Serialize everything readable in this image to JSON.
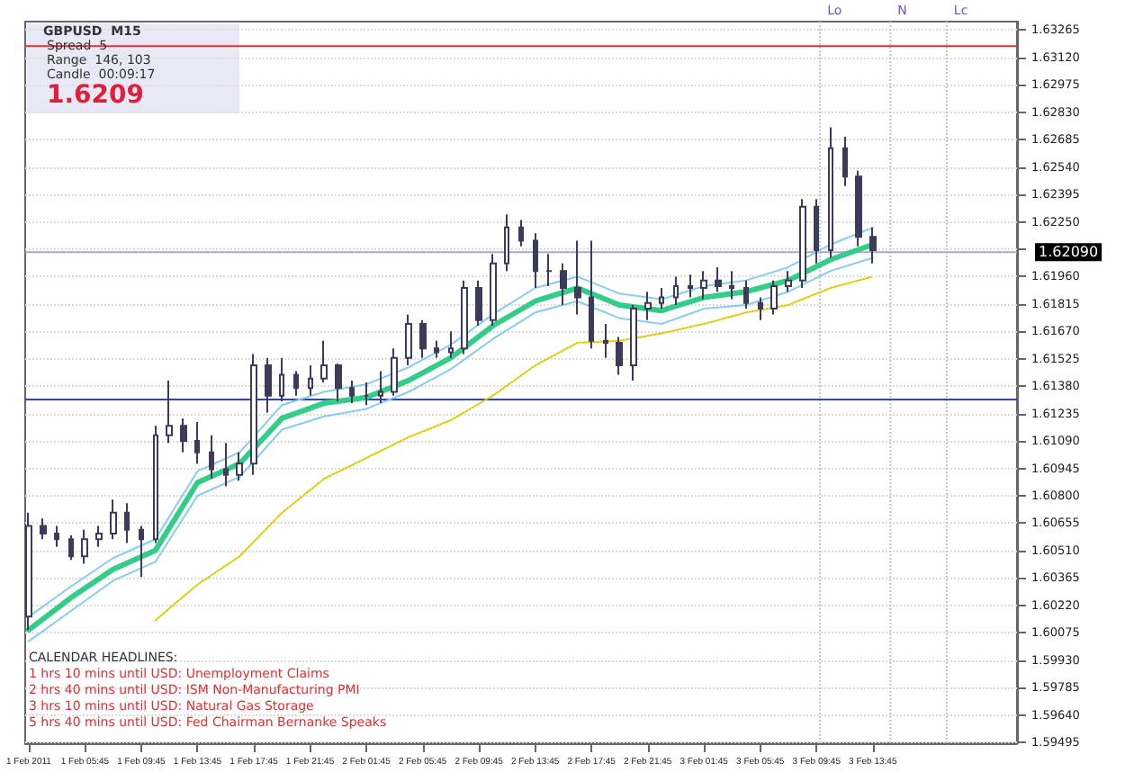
{
  "chart_data": {
    "type": "candlestick",
    "color": "#3c3c5a",
    "x": [
      "2011-02-01T01:45",
      "2011-02-01T02:45",
      "2011-02-01T03:45",
      "2011-02-01T04:45",
      "2011-02-01T05:45",
      "2011-02-01T06:45",
      "2011-02-01T07:45",
      "2011-02-01T08:45",
      "2011-02-01T09:45",
      "2011-02-01T10:45",
      "2011-02-01T11:45",
      "2011-02-01T12:45",
      "2011-02-01T13:45",
      "2011-02-01T14:45",
      "2011-02-01T15:45",
      "2011-02-01T16:45",
      "2011-02-01T17:45",
      "2011-02-01T18:45",
      "2011-02-01T19:45",
      "2011-02-01T20:45",
      "2011-02-01T21:45",
      "2011-02-01T22:45",
      "2011-02-01T23:45",
      "2011-02-02T00:45",
      "2011-02-02T01:45",
      "2011-02-02T02:45",
      "2011-02-02T03:45",
      "2011-02-02T04:45",
      "2011-02-02T05:45",
      "2011-02-02T06:45",
      "2011-02-02T07:45",
      "2011-02-02T08:45",
      "2011-02-02T09:45",
      "2011-02-02T10:45",
      "2011-02-02T11:45",
      "2011-02-02T12:45",
      "2011-02-02T13:45",
      "2011-02-02T14:45",
      "2011-02-02T15:45",
      "2011-02-02T16:45",
      "2011-02-02T17:45",
      "2011-02-02T18:45",
      "2011-02-02T19:45",
      "2011-02-02T20:45",
      "2011-02-02T21:45",
      "2011-02-02T22:45",
      "2011-02-02T23:45",
      "2011-02-03T00:45",
      "2011-02-03T01:45",
      "2011-02-03T02:45",
      "2011-02-03T03:45",
      "2011-02-03T04:45",
      "2011-02-03T05:45",
      "2011-02-03T06:45",
      "2011-02-03T07:45",
      "2011-02-03T08:45",
      "2011-02-03T09:45",
      "2011-02-03T10:45",
      "2011-02-03T11:45",
      "2011-02-03T12:45",
      "2011-02-03T13:45"
    ],
    "ohlc": [
      [
        1.6016,
        1.6071,
        1.6009,
        1.6064
      ],
      [
        1.6064,
        1.6068,
        1.6057,
        1.606
      ],
      [
        1.606,
        1.6064,
        1.6053,
        1.6057
      ],
      [
        1.6057,
        1.6059,
        1.6046,
        1.6048
      ],
      [
        1.6048,
        1.6062,
        1.6044,
        1.6057
      ],
      [
        1.6057,
        1.6064,
        1.6053,
        1.606
      ],
      [
        1.606,
        1.6078,
        1.6057,
        1.6071
      ],
      [
        1.6071,
        1.6076,
        1.6055,
        1.6062
      ],
      [
        1.6062,
        1.6064,
        1.6037,
        1.6057
      ],
      [
        1.6057,
        1.6117,
        1.6055,
        1.6112
      ],
      [
        1.6112,
        1.6141,
        1.6108,
        1.6117
      ],
      [
        1.6117,
        1.6121,
        1.6103,
        1.6109
      ],
      [
        1.6109,
        1.6119,
        1.6097,
        1.6103
      ],
      [
        1.6103,
        1.6112,
        1.6089,
        1.6094
      ],
      [
        1.6094,
        1.6108,
        1.6085,
        1.6091
      ],
      [
        1.6091,
        1.6103,
        1.6088,
        1.6097
      ],
      [
        1.6097,
        1.6155,
        1.6091,
        1.6149
      ],
      [
        1.6149,
        1.6153,
        1.6124,
        1.6133
      ],
      [
        1.6133,
        1.6153,
        1.613,
        1.6144
      ],
      [
        1.6144,
        1.6146,
        1.6133,
        1.6137
      ],
      [
        1.6137,
        1.6149,
        1.6133,
        1.6142
      ],
      [
        1.6142,
        1.6162,
        1.614,
        1.6149
      ],
      [
        1.6149,
        1.615,
        1.613,
        1.6137
      ],
      [
        1.6137,
        1.6141,
        1.6129,
        1.6133
      ],
      [
        1.6133,
        1.614,
        1.6128,
        1.6133
      ],
      [
        1.6133,
        1.6146,
        1.6129,
        1.6135
      ],
      [
        1.6135,
        1.6158,
        1.6133,
        1.6153
      ],
      [
        1.6153,
        1.6176,
        1.6149,
        1.6171
      ],
      [
        1.6171,
        1.6173,
        1.6153,
        1.6158
      ],
      [
        1.6158,
        1.6162,
        1.6153,
        1.6156
      ],
      [
        1.6156,
        1.6167,
        1.6153,
        1.6158
      ],
      [
        1.6158,
        1.6194,
        1.6155,
        1.619
      ],
      [
        1.619,
        1.6194,
        1.617,
        1.6173
      ],
      [
        1.6173,
        1.6208,
        1.617,
        1.6203
      ],
      [
        1.6203,
        1.6229,
        1.6199,
        1.6222
      ],
      [
        1.6222,
        1.6226,
        1.6212,
        1.6215
      ],
      [
        1.6215,
        1.6219,
        1.619,
        1.6199
      ],
      [
        1.6199,
        1.6208,
        1.6191,
        1.6199
      ],
      [
        1.6199,
        1.6203,
        1.6181,
        1.619
      ],
      [
        1.619,
        1.6215,
        1.6176,
        1.6185
      ],
      [
        1.6185,
        1.6215,
        1.6158,
        1.6162
      ],
      [
        1.6162,
        1.6171,
        1.6153,
        1.6161
      ],
      [
        1.6161,
        1.6164,
        1.6144,
        1.6149
      ],
      [
        1.6149,
        1.6181,
        1.6141,
        1.6179
      ],
      [
        1.6179,
        1.6188,
        1.6173,
        1.6182
      ],
      [
        1.6182,
        1.619,
        1.6179,
        1.6185
      ],
      [
        1.6185,
        1.6196,
        1.6181,
        1.6191
      ],
      [
        1.6191,
        1.6197,
        1.6185,
        1.619
      ],
      [
        1.619,
        1.6199,
        1.6184,
        1.6194
      ],
      [
        1.6194,
        1.6201,
        1.6188,
        1.6191
      ],
      [
        1.6191,
        1.6199,
        1.6184,
        1.619
      ],
      [
        1.619,
        1.6194,
        1.6179,
        1.6182
      ],
      [
        1.6182,
        1.6185,
        1.6173,
        1.6179
      ],
      [
        1.6179,
        1.6194,
        1.6176,
        1.6191
      ],
      [
        1.6191,
        1.6199,
        1.6188,
        1.6194
      ],
      [
        1.6194,
        1.6237,
        1.619,
        1.6233
      ],
      [
        1.6233,
        1.6237,
        1.6203,
        1.621
      ],
      [
        1.621,
        1.6275,
        1.6206,
        1.6264
      ],
      [
        1.6264,
        1.627,
        1.6244,
        1.6249
      ],
      [
        1.6249,
        1.6252,
        1.6212,
        1.6217
      ],
      [
        1.6217,
        1.6222,
        1.6203,
        1.621
      ]
    ],
    "series": [
      {
        "type": "line",
        "color": "#33cc88",
        "line_style": "solid",
        "x": [
          "2011-02-01T01:45",
          "2011-02-01T04:45",
          "2011-02-01T07:45",
          "2011-02-01T10:45",
          "2011-02-01T13:45",
          "2011-02-01T16:45",
          "2011-02-01T19:45",
          "2011-02-01T22:45",
          "2011-02-02T01:45",
          "2011-02-02T04:45",
          "2011-02-02T07:45",
          "2011-02-02T10:45",
          "2011-02-02T13:45",
          "2011-02-02T16:45",
          "2011-02-02T19:45",
          "2011-02-02T22:45",
          "2011-02-03T01:45",
          "2011-02-03T04:45",
          "2011-02-03T07:45",
          "2011-02-03T10:45",
          "2011-02-03T13:45"
        ],
        "values": [
          1.6009,
          1.6026,
          1.6041,
          1.6051,
          1.6087,
          1.6097,
          1.6121,
          1.6129,
          1.6132,
          1.6141,
          1.6153,
          1.617,
          1.6183,
          1.619,
          1.6181,
          1.6178,
          1.6185,
          1.6188,
          1.6194,
          1.6205,
          1.6213
        ]
      },
      {
        "type": "line",
        "color": "#88ccf0",
        "line_style": "solid",
        "x": [
          "2011-02-01T01:45",
          "2011-02-01T04:45",
          "2011-02-01T07:45",
          "2011-02-01T10:45",
          "2011-02-01T13:45",
          "2011-02-01T16:45",
          "2011-02-01T19:45",
          "2011-02-01T22:45",
          "2011-02-02T01:45",
          "2011-02-02T04:45",
          "2011-02-02T07:45",
          "2011-02-02T10:45",
          "2011-02-02T13:45",
          "2011-02-02T16:45",
          "2011-02-02T19:45",
          "2011-02-02T22:45",
          "2011-02-03T01:45",
          "2011-02-03T04:45",
          "2011-02-03T07:45",
          "2011-02-03T10:45",
          "2011-02-03T13:45"
        ],
        "values": [
          1.6016,
          1.6032,
          1.6047,
          1.6057,
          1.6093,
          1.6103,
          1.6128,
          1.6135,
          1.6139,
          1.6148,
          1.616,
          1.6176,
          1.619,
          1.6196,
          1.6187,
          1.6184,
          1.6191,
          1.6194,
          1.6201,
          1.6213,
          1.6222
        ]
      },
      {
        "type": "line",
        "color": "#88ccf0",
        "line_style": "solid",
        "x": [
          "2011-02-01T01:45",
          "2011-02-01T04:45",
          "2011-02-01T07:45",
          "2011-02-01T10:45",
          "2011-02-01T13:45",
          "2011-02-01T16:45",
          "2011-02-01T19:45",
          "2011-02-01T22:45",
          "2011-02-02T01:45",
          "2011-02-02T04:45",
          "2011-02-02T07:45",
          "2011-02-02T10:45",
          "2011-02-02T13:45",
          "2011-02-02T16:45",
          "2011-02-02T19:45",
          "2011-02-02T22:45",
          "2011-02-03T01:45",
          "2011-02-03T04:45",
          "2011-02-03T07:45",
          "2011-02-03T10:45",
          "2011-02-03T13:45"
        ],
        "values": [
          1.6003,
          1.6019,
          1.6035,
          1.6045,
          1.608,
          1.609,
          1.6115,
          1.6122,
          1.6126,
          1.6135,
          1.6147,
          1.6163,
          1.6177,
          1.6183,
          1.6174,
          1.6171,
          1.6179,
          1.6181,
          1.6188,
          1.6199,
          1.6206
        ]
      },
      {
        "type": "line",
        "color": "#ddcc00",
        "line_style": "dotted",
        "x": [
          "2011-02-01T10:45",
          "2011-02-01T13:45",
          "2011-02-01T16:45",
          "2011-02-01T19:45",
          "2011-02-01T22:45",
          "2011-02-02T01:45",
          "2011-02-02T04:45",
          "2011-02-02T07:45",
          "2011-02-02T10:45",
          "2011-02-02T13:45",
          "2011-02-02T16:45",
          "2011-02-02T19:45",
          "2011-02-02T22:45",
          "2011-02-03T01:45",
          "2011-02-03T04:45",
          "2011-02-03T07:45",
          "2011-02-03T10:45",
          "2011-02-03T13:45"
        ],
        "values": [
          1.6014,
          1.6033,
          1.6048,
          1.6071,
          1.6089,
          1.61,
          1.6111,
          1.612,
          1.6133,
          1.6149,
          1.6161,
          1.6162,
          1.6166,
          1.6171,
          1.6177,
          1.6181,
          1.619,
          1.6196
        ]
      }
    ],
    "xlim": [
      "2011-02-01T01:30",
      "2011-02-04T00:00"
    ],
    "xticks": [
      {
        "value": "2011-02-01T01:45",
        "label": "1 Feb 2011"
      },
      {
        "value": "2011-02-01T05:45",
        "label": "1 Feb 05:45"
      },
      {
        "value": "2011-02-01T09:45",
        "label": "1 Feb 09:45"
      },
      {
        "value": "2011-02-01T13:45",
        "label": "1 Feb 13:45"
      },
      {
        "value": "2011-02-01T17:45",
        "label": "1 Feb 17:45"
      },
      {
        "value": "2011-02-01T21:45",
        "label": "1 Feb 21:45"
      },
      {
        "value": "2011-02-02T01:45",
        "label": "2 Feb 01:45"
      },
      {
        "value": "2011-02-02T05:45",
        "label": "2 Feb 05:45"
      },
      {
        "value": "2011-02-02T09:45",
        "label": "2 Feb 09:45"
      },
      {
        "value": "2011-02-02T13:45",
        "label": "2 Feb 13:45"
      },
      {
        "value": "2011-02-02T17:45",
        "label": "2 Feb 17:45"
      },
      {
        "value": "2011-02-02T21:45",
        "label": "2 Feb 21:45"
      },
      {
        "value": "2011-02-03T01:45",
        "label": "3 Feb 01:45"
      },
      {
        "value": "2011-02-03T05:45",
        "label": "3 Feb 05:45"
      },
      {
        "value": "2011-02-03T09:45",
        "label": "3 Feb 09:45"
      },
      {
        "value": "2011-02-03T13:45",
        "label": "3 Feb 13:45"
      }
    ],
    "ylim": [
      1.5949,
      1.6331
    ],
    "yticks": [
      {
        "value": 1.59495,
        "label": "1.59495"
      },
      {
        "value": 1.5964,
        "label": "1.59640"
      },
      {
        "value": 1.59785,
        "label": "1.59785"
      },
      {
        "value": 1.5993,
        "label": "1.59930"
      },
      {
        "value": 1.60075,
        "label": "1.60075"
      },
      {
        "value": 1.6022,
        "label": "1.60220"
      },
      {
        "value": 1.60365,
        "label": "1.60365"
      },
      {
        "value": 1.6051,
        "label": "1.60510"
      },
      {
        "value": 1.60655,
        "label": "1.60655"
      },
      {
        "value": 1.608,
        "label": "1.60800"
      },
      {
        "value": 1.60945,
        "label": "1.60945"
      },
      {
        "value": 1.6109,
        "label": "1.61090"
      },
      {
        "value": 1.61235,
        "label": "1.61235"
      },
      {
        "value": 1.6138,
        "label": "1.61380"
      },
      {
        "value": 1.61525,
        "label": "1.61525"
      },
      {
        "value": 1.6167,
        "label": "1.61670"
      },
      {
        "value": 1.61815,
        "label": "1.61815"
      },
      {
        "value": 1.6196,
        "label": "1.61960"
      },
      {
        "value": 1.62105,
        "label": null
      },
      {
        "value": 1.6225,
        "label": "1.62250"
      },
      {
        "value": 1.62395,
        "label": "1.62395"
      },
      {
        "value": 1.6254,
        "label": "1.62540"
      },
      {
        "value": 1.62685,
        "label": "1.62685"
      },
      {
        "value": 1.6283,
        "label": "1.62830"
      },
      {
        "value": 1.62975,
        "label": "1.62975"
      },
      {
        "value": 1.6312,
        "label": "1.63120"
      },
      {
        "value": 1.63265,
        "label": "1.63265"
      }
    ],
    "grid": "y",
    "ref_lines": [
      {
        "axis": "y",
        "value": 1.6318,
        "color": "#e03030",
        "line_style": "solid"
      },
      {
        "axis": "y",
        "value": 1.6131,
        "color": "#3040e0",
        "line_style": "solid"
      },
      {
        "axis": "y",
        "value": 1.6209,
        "label": "1.62090",
        "color": "#a8a8c8",
        "line_style": "solid"
      },
      {
        "axis": "x",
        "value": "2011-02-03T10:00",
        "label": "Lo",
        "color": "#c0c0e0",
        "line_style": "dotted"
      },
      {
        "axis": "x",
        "value": "2011-02-03T15:00",
        "label": "N",
        "color": "#c0c0e0",
        "line_style": "dotted"
      },
      {
        "axis": "x",
        "value": "2011-02-03T19:00",
        "label": "Lc",
        "color": "#c0c0e0",
        "line_style": "dotted"
      }
    ],
    "annotations": [
      "GBPUSD  M15",
      "Spread  5",
      "Range  146, 103",
      "Candle  00:09:17",
      "1.6209",
      "CALENDAR HEADLINES:",
      "1 hrs 10 mins until USD: Unemployment Claims",
      "2 hrs 40 mins until USD: ISM Non-Manufacturing PMI",
      "3 hrs 10 mins until USD: Natural Gas Storage",
      "5 hrs 40 mins until USD: Fed Chairman Bernanke Speaks"
    ]
  }
}
